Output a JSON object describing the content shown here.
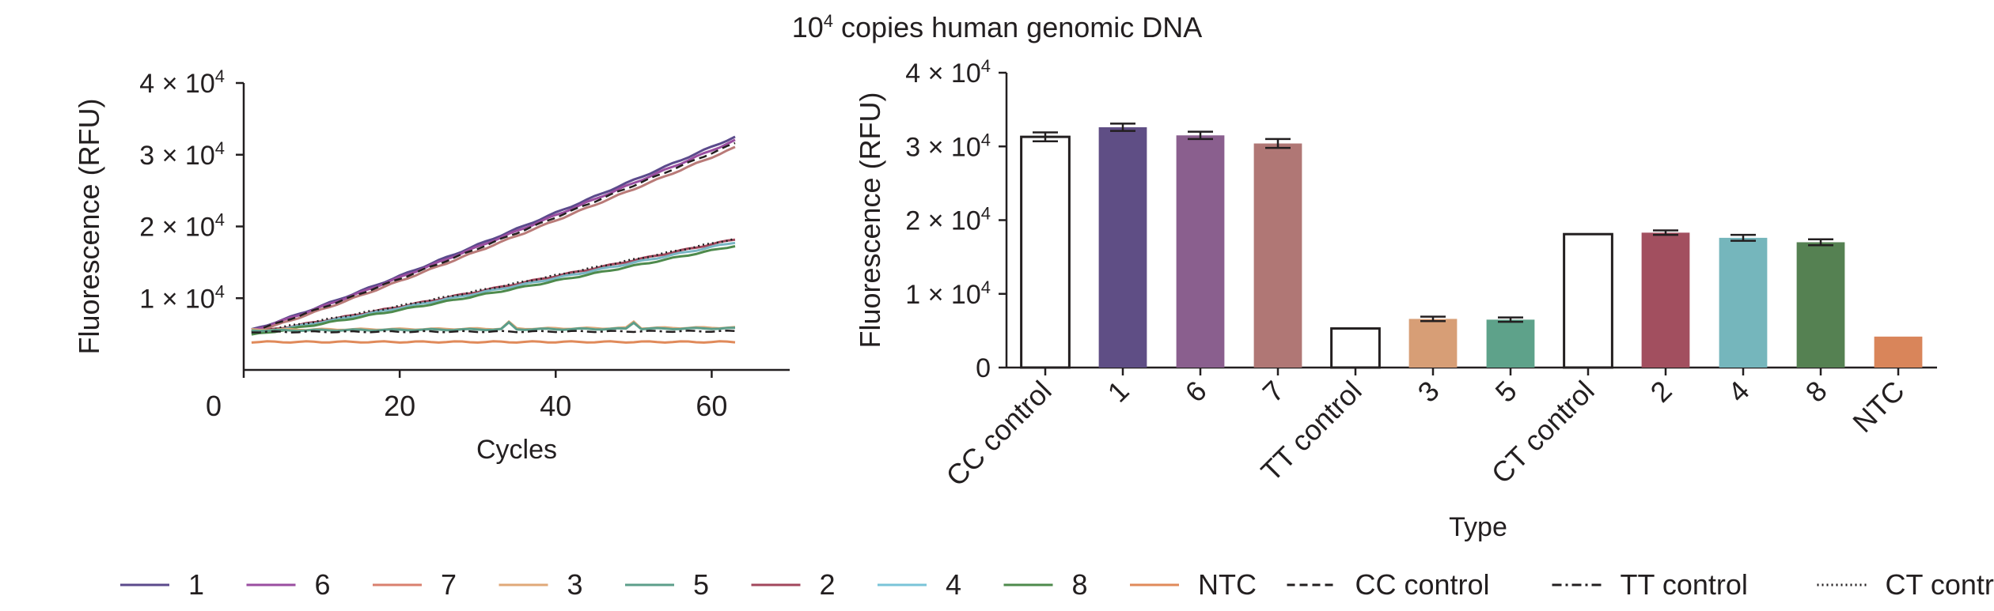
{
  "title": {
    "base": "10",
    "exp": "4",
    "rest": " copies human genomic DNA"
  },
  "chart_data": [
    {
      "type": "line",
      "ylabel": "Fluorescence (RFU)",
      "xlabel": "Cycles",
      "xlim": [
        0,
        70
      ],
      "ylim": [
        0,
        40000
      ],
      "x_ticks": [
        0,
        20,
        40,
        60
      ],
      "y_ticks": [
        10000,
        20000,
        30000,
        40000
      ],
      "y_tick_labels": [
        {
          "mant": "1 × 10",
          "exp": "4"
        },
        {
          "mant": "2 × 10",
          "exp": "4"
        },
        {
          "mant": "3 × 10",
          "exp": "4"
        },
        {
          "mant": "4 × 10",
          "exp": "4"
        }
      ],
      "x_range": [
        1,
        63
      ],
      "series": [
        {
          "name": "1",
          "color": "#5b4a8c",
          "dash": "solid",
          "start": 5600,
          "end": 32500
        },
        {
          "name": "6",
          "color": "#9a4ea0",
          "dash": "solid",
          "start": 5500,
          "end": 32000
        },
        {
          "name": "7",
          "color": "#b97a78",
          "dash": "solid",
          "start": 5200,
          "end": 31000
        },
        {
          "name": "CC control",
          "color": "#231f20",
          "dash": "dashed",
          "start": 5400,
          "end": 31600
        },
        {
          "name": "2",
          "color": "#a2475c",
          "dash": "solid",
          "start": 5200,
          "end": 18200
        },
        {
          "name": "4",
          "color": "#79b6c4",
          "dash": "solid",
          "start": 5100,
          "end": 17800
        },
        {
          "name": "8",
          "color": "#4e8a4c",
          "dash": "solid",
          "start": 4900,
          "end": 17300
        },
        {
          "name": "CT control",
          "color": "#231f20",
          "dash": "dotted",
          "start": 5300,
          "end": 18300
        },
        {
          "name": "3",
          "color": "#e0a878",
          "dash": "solid",
          "start": 5600,
          "end": 5900
        },
        {
          "name": "5",
          "color": "#5c9e8a",
          "dash": "solid",
          "start": 5500,
          "end": 5800
        },
        {
          "name": "TT control",
          "color": "#231f20",
          "dash": "dashdot",
          "start": 5300,
          "end": 5400
        },
        {
          "name": "NTC",
          "color": "#e08a5a",
          "dash": "solid",
          "start": 3900,
          "end": 3900
        }
      ]
    },
    {
      "type": "bar",
      "ylabel": "Fluorescence (RFU)",
      "xlabel": "Type",
      "ylim": [
        0,
        40000
      ],
      "y_ticks": [
        0,
        10000,
        20000,
        30000,
        40000
      ],
      "y_tick_labels": [
        {
          "mant": "0",
          "exp": ""
        },
        {
          "mant": "1 × 10",
          "exp": "4"
        },
        {
          "mant": "2 × 10",
          "exp": "4"
        },
        {
          "mant": "3 × 10",
          "exp": "4"
        },
        {
          "mant": "4 × 10",
          "exp": "4"
        }
      ],
      "categories": [
        "CC control",
        "1",
        "6",
        "7",
        "TT control",
        "3",
        "5",
        "CT control",
        "2",
        "4",
        "8",
        "NTC"
      ],
      "values": [
        31300,
        32600,
        31500,
        30400,
        5300,
        6600,
        6500,
        18100,
        18300,
        17600,
        17000,
        4200
      ],
      "errors": [
        600,
        500,
        500,
        600,
        0,
        300,
        300,
        0,
        300,
        400,
        400,
        0
      ],
      "colors": [
        "#ffffff",
        "#5f4e85",
        "#8a5f8e",
        "#b07775",
        "#ffffff",
        "#d79e76",
        "#5ea28a",
        "#ffffff",
        "#a24f5f",
        "#75b6bc",
        "#558152",
        "#d9855a"
      ],
      "outlined": [
        true,
        false,
        false,
        false,
        true,
        false,
        false,
        true,
        false,
        false,
        false,
        false
      ]
    }
  ],
  "legend": [
    {
      "label": "1",
      "color": "#5b4a8c",
      "dash": "solid"
    },
    {
      "label": "6",
      "color": "#9a4ea0",
      "dash": "solid"
    },
    {
      "label": "7",
      "color": "#d9806e",
      "dash": "solid"
    },
    {
      "label": "3",
      "color": "#e0a878",
      "dash": "solid"
    },
    {
      "label": "5",
      "color": "#5c9e8a",
      "dash": "solid"
    },
    {
      "label": "2",
      "color": "#a2475c",
      "dash": "solid"
    },
    {
      "label": "4",
      "color": "#79c4d8",
      "dash": "solid"
    },
    {
      "label": "8",
      "color": "#4e8a4c",
      "dash": "solid"
    },
    {
      "label": "NTC",
      "color": "#e08a5a",
      "dash": "solid"
    },
    {
      "label": "CC control",
      "color": "#231f20",
      "dash": "dashed"
    },
    {
      "label": "TT control",
      "color": "#231f20",
      "dash": "dashdot"
    },
    {
      "label": "CT control",
      "color": "#231f20",
      "dash": "dotted"
    }
  ]
}
